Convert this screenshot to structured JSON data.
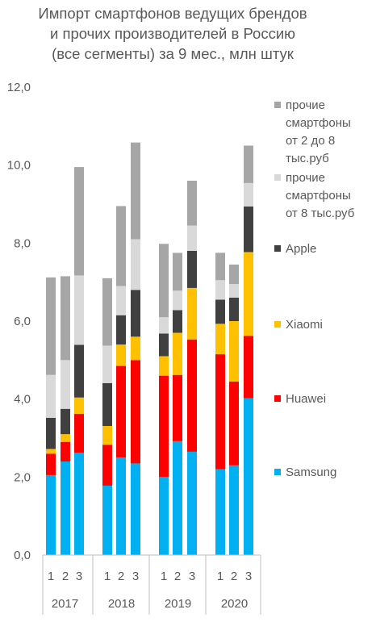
{
  "title": {
    "line1": "Импорт смартфонов ведущих брендов",
    "line2": "и прочих производителей в Россию",
    "line3": "(все сегменты) за 9 мес., млн штук"
  },
  "chart_data": {
    "type": "bar",
    "stacked": true,
    "title": "Импорт смартфонов ведущих брендов и прочих производителей в Россию (все сегменты) за 9 мес., млн штук",
    "ylim": [
      0,
      12
    ],
    "yticks": [
      "0,0",
      "2,0",
      "4,0",
      "6,0",
      "8,0",
      "10,0",
      "12,0"
    ],
    "grid": false,
    "legend_position": "right",
    "groups": [
      {
        "label": "2017",
        "categories": [
          "1",
          "2",
          "3"
        ]
      },
      {
        "label": "2018",
        "categories": [
          "1",
          "2",
          "3"
        ]
      },
      {
        "label": "2019",
        "categories": [
          "1",
          "2",
          "3"
        ]
      },
      {
        "label": "2020",
        "categories": [
          "1",
          "2",
          "3"
        ]
      }
    ],
    "series": [
      {
        "name": "Samsung",
        "color": "#00b0f0",
        "values": [
          2.05,
          2.4,
          2.62,
          1.78,
          2.5,
          2.35,
          2.0,
          2.92,
          2.65,
          2.2,
          2.3,
          4.02
        ]
      },
      {
        "name": "Huawei",
        "color": "#ff0000",
        "values": [
          0.55,
          0.5,
          1.0,
          1.05,
          2.35,
          2.65,
          2.6,
          1.7,
          2.88,
          2.95,
          2.15,
          1.6
        ]
      },
      {
        "name": "Xiaomi",
        "color": "#ffc000",
        "values": [
          0.12,
          0.2,
          0.42,
          0.48,
          0.55,
          0.6,
          0.5,
          1.08,
          1.32,
          0.78,
          1.55,
          2.15
        ]
      },
      {
        "name": "Apple",
        "color": "#404040",
        "values": [
          0.8,
          0.65,
          1.35,
          1.1,
          0.75,
          1.2,
          0.58,
          0.58,
          0.95,
          0.62,
          0.6,
          1.17
        ]
      },
      {
        "name": "прочие смартфоны от 8 тыс.руб",
        "color": "#d9d9d9",
        "values": [
          1.1,
          1.25,
          1.78,
          0.96,
          0.75,
          1.3,
          0.42,
          0.5,
          0.65,
          0.5,
          0.35,
          0.6
        ]
      },
      {
        "name": "прочие смартфоны от 2 до 8 тыс.руб",
        "color": "#a6a6a6",
        "values": [
          2.5,
          2.15,
          2.78,
          1.73,
          2.05,
          2.48,
          1.88,
          0.97,
          1.15,
          0.7,
          0.5,
          0.96
        ]
      }
    ]
  },
  "legend": [
    {
      "label": "прочие\nсмартфоны\nот 2 до 8\nтыс.руб",
      "color": "#a6a6a6"
    },
    {
      "label": "прочие\nсмартфоны\nот 8 тыс.руб",
      "color": "#d9d9d9"
    },
    {
      "label": "Apple",
      "color": "#404040"
    },
    {
      "label": "Xiaomi",
      "color": "#ffc000"
    },
    {
      "label": "Huawei",
      "color": "#ff0000"
    },
    {
      "label": "Samsung",
      "color": "#00b0f0"
    }
  ]
}
